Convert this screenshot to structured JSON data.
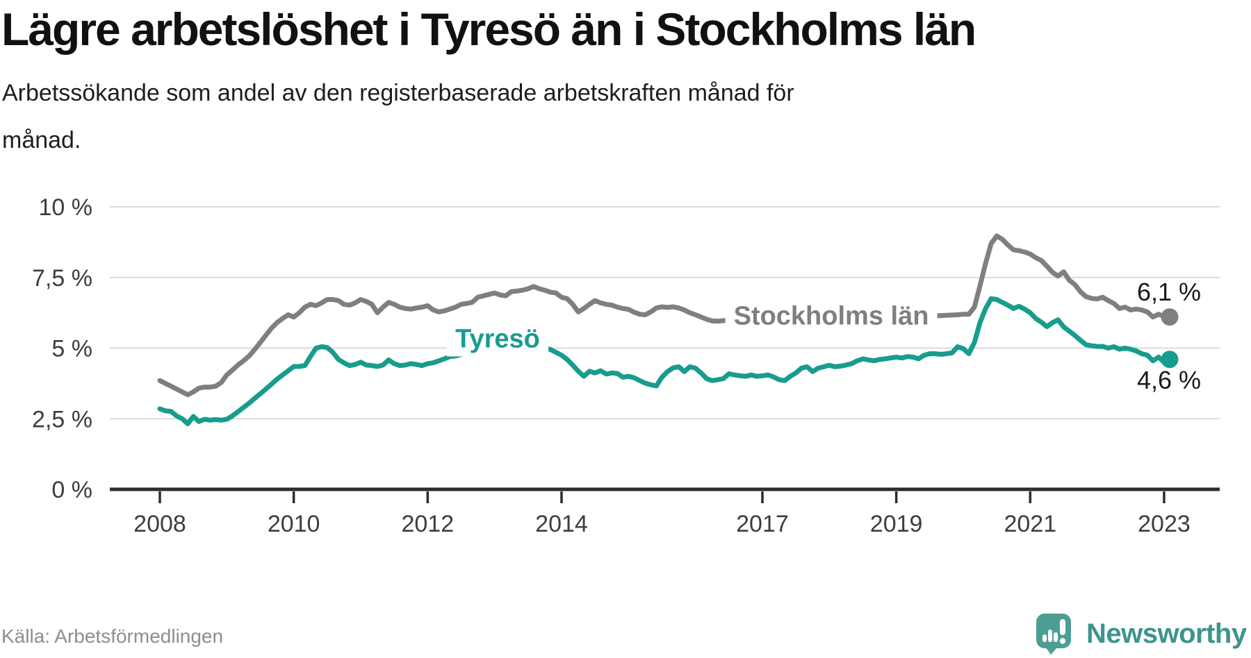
{
  "header": {
    "title": "Lägre arbetslöshet i Tyresö än i Stockholms län",
    "subtitle_line1": "Arbetssökande som andel av den registerbaserade arbetskraften månad för",
    "subtitle_line2": "månad."
  },
  "footer": {
    "source": "Källa: Arbetsförmedlingen",
    "brand": "Newsworthy"
  },
  "colors": {
    "tyreso": "#189c8e",
    "stockholm": "#7f7f7f",
    "axis": "#2c2c2c",
    "grid": "#dadada",
    "logo": "#4c9d94"
  },
  "chart_data": {
    "type": "line",
    "x_unit": "month",
    "x_start": "2008-01",
    "x_end": "2023-02",
    "ylim": [
      0,
      10
    ],
    "grid": "on",
    "grid_color": "#dadada",
    "axis_color": "#2c2c2c",
    "tick_label_color": "#3d3d3d",
    "x_ticks": [
      {
        "year": 2008,
        "label": "2008"
      },
      {
        "year": 2010,
        "label": "2010"
      },
      {
        "year": 2012,
        "label": "2012"
      },
      {
        "year": 2014,
        "label": "2014"
      },
      {
        "year": 2017,
        "label": "2017"
      },
      {
        "year": 2019,
        "label": "2019"
      },
      {
        "year": 2021,
        "label": "2021"
      },
      {
        "year": 2023,
        "label": "2023"
      }
    ],
    "y_ticks": [
      {
        "value": 0,
        "label": "0 %"
      },
      {
        "value": 2.5,
        "label": "2,5 %"
      },
      {
        "value": 5,
        "label": "5 %"
      },
      {
        "value": 7.5,
        "label": "7,5 %"
      },
      {
        "value": 10,
        "label": "10 %"
      }
    ],
    "series": [
      {
        "id": "stockholm",
        "name": "Stockholms län",
        "color": "#7f7f7f",
        "end_label": "6,1 %",
        "end_value": 6.1,
        "values": [
          3.85,
          3.75,
          3.65,
          3.55,
          3.45,
          3.35,
          3.45,
          3.58,
          3.62,
          3.62,
          3.65,
          3.78,
          4.05,
          4.22,
          4.4,
          4.55,
          4.72,
          4.95,
          5.2,
          5.45,
          5.7,
          5.9,
          6.05,
          6.18,
          6.1,
          6.25,
          6.45,
          6.55,
          6.5,
          6.6,
          6.72,
          6.72,
          6.68,
          6.55,
          6.52,
          6.6,
          6.72,
          6.65,
          6.55,
          6.25,
          6.45,
          6.62,
          6.55,
          6.45,
          6.4,
          6.38,
          6.42,
          6.45,
          6.5,
          6.35,
          6.28,
          6.32,
          6.38,
          6.45,
          6.55,
          6.58,
          6.62,
          6.8,
          6.85,
          6.9,
          6.95,
          6.88,
          6.85,
          7.0,
          7.02,
          7.05,
          7.1,
          7.18,
          7.1,
          7.05,
          6.98,
          6.95,
          6.8,
          6.75,
          6.55,
          6.28,
          6.4,
          6.55,
          6.68,
          6.6,
          6.55,
          6.52,
          6.45,
          6.4,
          6.37,
          6.27,
          6.2,
          6.18,
          6.28,
          6.42,
          6.46,
          6.44,
          6.46,
          6.42,
          6.35,
          6.25,
          6.18,
          6.1,
          6.02,
          5.96,
          5.95,
          5.97,
          6.0,
          6.02,
          6.05,
          6.05,
          6.05,
          6.05,
          6.05,
          6.05,
          6.06,
          6.07,
          6.08,
          6.09,
          6.1,
          6.1,
          6.09,
          6.08,
          6.07,
          6.06,
          6.06,
          6.06,
          6.07,
          6.08,
          6.09,
          6.1,
          6.1,
          6.1,
          6.1,
          6.1,
          6.1,
          6.1,
          6.1,
          6.11,
          6.12,
          6.12,
          6.13,
          6.14,
          6.15,
          6.15,
          6.15,
          6.16,
          6.17,
          6.18,
          6.2,
          6.2,
          6.45,
          7.2,
          8.0,
          8.7,
          8.97,
          8.85,
          8.65,
          8.48,
          8.45,
          8.4,
          8.33,
          8.2,
          8.1,
          7.9,
          7.68,
          7.55,
          7.7,
          7.4,
          7.25,
          7.0,
          6.82,
          6.76,
          6.74,
          6.8,
          6.68,
          6.58,
          6.4,
          6.45,
          6.35,
          6.38,
          6.35,
          6.28,
          6.1,
          6.2,
          6.12,
          6.1
        ]
      },
      {
        "id": "tyreso",
        "name": "Tyresö",
        "color": "#189c8e",
        "end_label": "4,6 %",
        "end_value": 4.6,
        "values": [
          2.85,
          2.78,
          2.76,
          2.6,
          2.5,
          2.32,
          2.58,
          2.4,
          2.48,
          2.45,
          2.47,
          2.45,
          2.48,
          2.6,
          2.75,
          2.9,
          3.05,
          3.22,
          3.38,
          3.55,
          3.72,
          3.9,
          4.05,
          4.2,
          4.35,
          4.35,
          4.38,
          4.7,
          5.0,
          5.05,
          5.02,
          4.85,
          4.6,
          4.48,
          4.38,
          4.42,
          4.5,
          4.4,
          4.38,
          4.35,
          4.4,
          4.58,
          4.45,
          4.38,
          4.4,
          4.45,
          4.42,
          4.38,
          4.45,
          4.48,
          4.55,
          4.62,
          4.7,
          4.72,
          4.78,
          4.8,
          4.82,
          4.84,
          4.86,
          4.88,
          4.9,
          4.91,
          4.92,
          4.94,
          4.95,
          4.98,
          5.0,
          5.02,
          5.01,
          5.0,
          4.95,
          4.85,
          4.75,
          4.6,
          4.4,
          4.18,
          4.0,
          4.18,
          4.12,
          4.2,
          4.08,
          4.12,
          4.1,
          3.97,
          4.0,
          3.95,
          3.85,
          3.76,
          3.7,
          3.66,
          3.97,
          4.17,
          4.3,
          4.34,
          4.17,
          4.34,
          4.29,
          4.12,
          3.92,
          3.85,
          3.88,
          3.92,
          4.09,
          4.05,
          4.02,
          4.0,
          4.05,
          4.0,
          4.02,
          4.05,
          3.98,
          3.88,
          3.85,
          4.0,
          4.12,
          4.29,
          4.34,
          4.17,
          4.29,
          4.34,
          4.39,
          4.34,
          4.36,
          4.4,
          4.45,
          4.55,
          4.62,
          4.58,
          4.55,
          4.6,
          4.62,
          4.65,
          4.68,
          4.65,
          4.7,
          4.68,
          4.62,
          4.75,
          4.8,
          4.8,
          4.78,
          4.8,
          4.83,
          5.05,
          4.98,
          4.8,
          5.2,
          5.9,
          6.4,
          6.75,
          6.72,
          6.62,
          6.52,
          6.4,
          6.48,
          6.38,
          6.25,
          6.05,
          5.92,
          5.76,
          5.9,
          6.0,
          5.75,
          5.6,
          5.45,
          5.28,
          5.12,
          5.08,
          5.06,
          5.06,
          5.0,
          5.05,
          4.96,
          5.0,
          4.96,
          4.9,
          4.8,
          4.75,
          4.55,
          4.68,
          4.5,
          4.6
        ]
      }
    ]
  }
}
